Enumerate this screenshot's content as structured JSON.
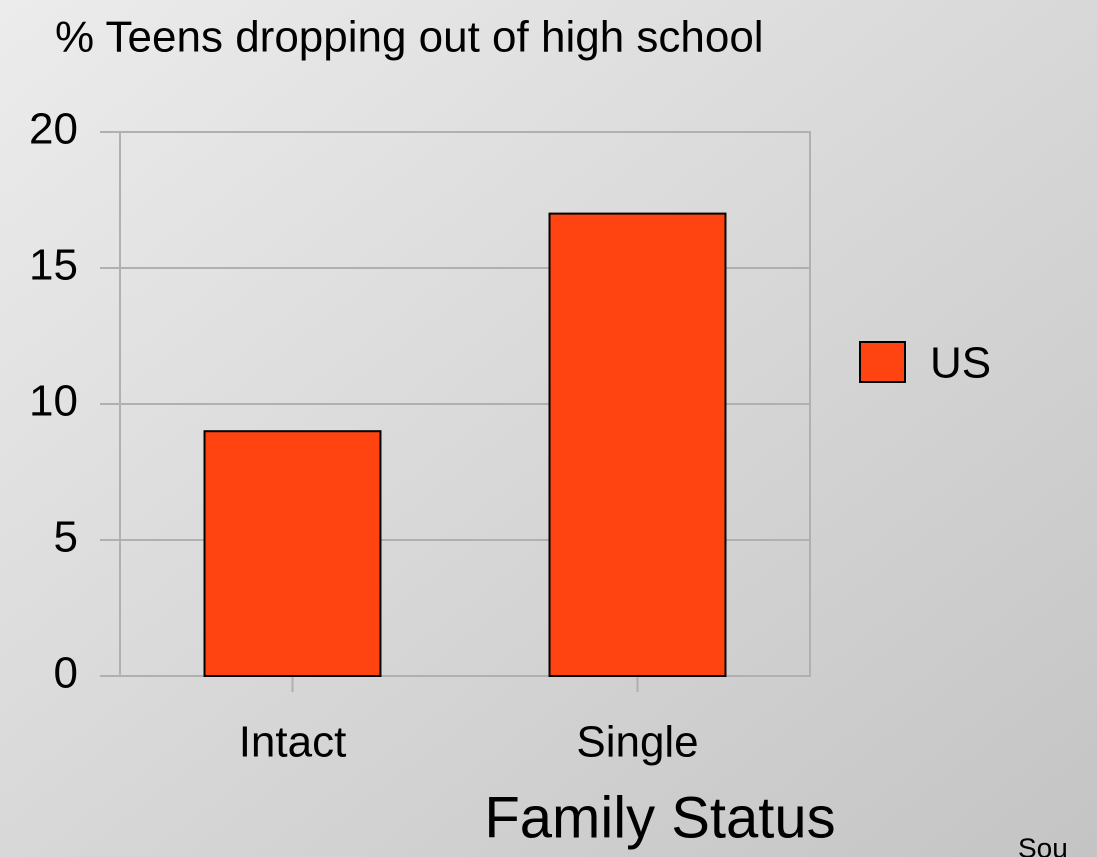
{
  "chart_data": {
    "type": "bar",
    "title": "% Teens dropping out of high school",
    "x_label": "Family Status",
    "categories": [
      "Intact",
      "Single"
    ],
    "series": [
      {
        "name": "US",
        "color": "#ff4411",
        "values": [
          9,
          17
        ]
      }
    ],
    "ylim": [
      0,
      20
    ],
    "yticks": [
      0,
      5,
      10,
      15,
      20
    ],
    "grid": true,
    "legend": "right",
    "annotation": "Sou"
  }
}
